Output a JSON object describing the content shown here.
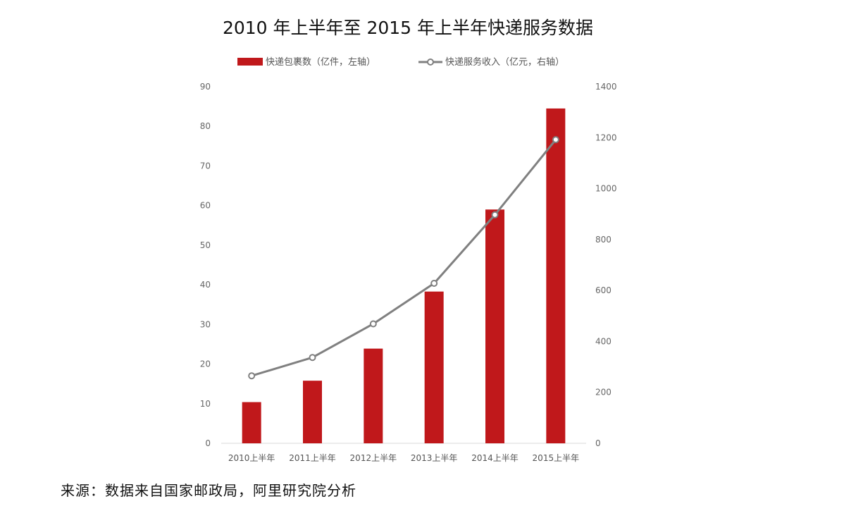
{
  "chart_data": {
    "type": "bar",
    "title": "2010 年上半年至 2015 年上半年快递服务数据",
    "categories": [
      "2010上半年",
      "2011上半年",
      "2012上半年",
      "2013上半年",
      "2014上半年",
      "2015上半年"
    ],
    "series": [
      {
        "name": "快递包裹数（亿件，左轴）",
        "type": "bar",
        "axis": "left",
        "color": "#c0181b",
        "values": [
          10.4,
          15.8,
          23.9,
          38.3,
          59.0,
          84.5
        ]
      },
      {
        "name": "快递服务收入（亿元，右轴）",
        "type": "line",
        "axis": "right",
        "color": "#808080",
        "marker": "hollow-circle",
        "values": [
          265,
          337,
          469,
          628,
          897,
          1192
        ]
      }
    ],
    "y_left": {
      "min": 0,
      "max": 90,
      "step": 10,
      "ticks": [
        "0",
        "10",
        "20",
        "30",
        "40",
        "50",
        "60",
        "70",
        "80",
        "90"
      ]
    },
    "y_right": {
      "min": 0,
      "max": 1400,
      "step": 200,
      "ticks": [
        "0",
        "200",
        "400",
        "600",
        "800",
        "1000",
        "1200",
        "1400"
      ]
    },
    "grid": false,
    "legend_position": "top-center"
  },
  "footer": {
    "source": "来源：数据来自国家邮政局，阿里研究院分析"
  }
}
